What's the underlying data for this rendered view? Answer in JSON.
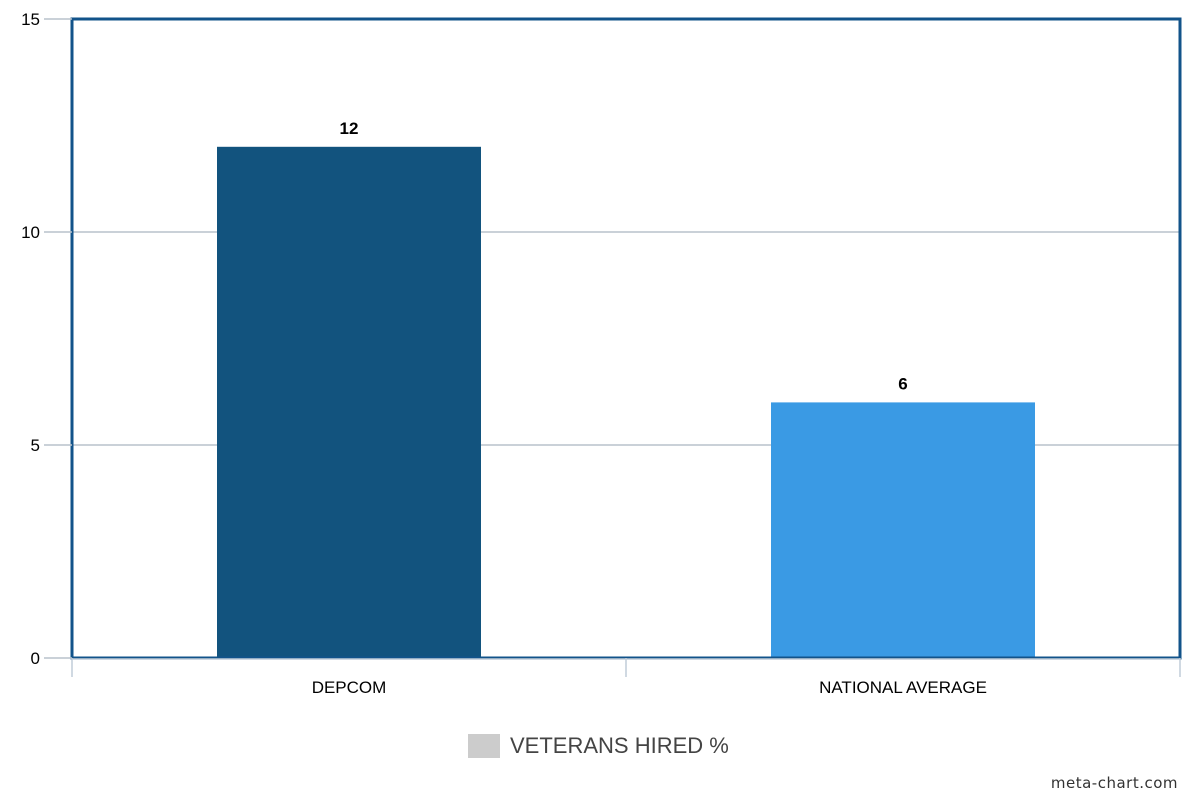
{
  "chart_data": {
    "type": "bar",
    "categories": [
      "DEPCOM",
      "NATIONAL AVERAGE"
    ],
    "values": [
      12,
      6
    ],
    "bar_colors": [
      "#12537e",
      "#3a9ae4"
    ],
    "y_ticks": [
      0,
      5,
      10,
      15
    ],
    "ylim": [
      0,
      15
    ],
    "grid": true,
    "legend": {
      "label": "VETERANS HIRED %",
      "swatch_color": "#cccccc",
      "placement": "bottom-center"
    },
    "frame_color": "#12538a",
    "grid_color": "#b8c2cc"
  },
  "watermark": "meta-chart.com"
}
